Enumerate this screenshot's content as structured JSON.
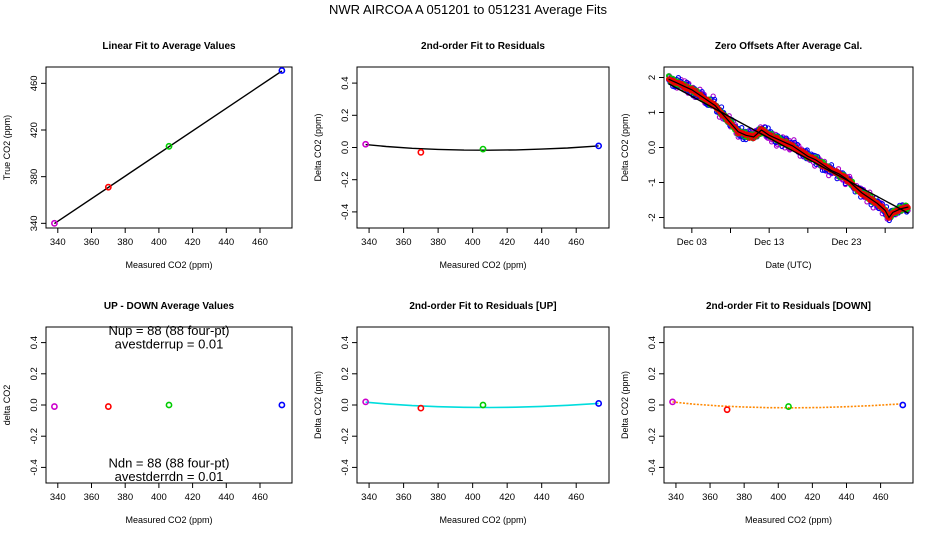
{
  "figure_title": "NWR   AIRCOA A   051201 to 051231   Average Fits",
  "chart_data": [
    {
      "id": "p1",
      "type": "scatter",
      "title": "Linear Fit to Average Values",
      "xlabel": "Measured CO2 (ppm)",
      "ylabel": "True CO2 (ppm)",
      "xlim": [
        333,
        479
      ],
      "ylim": [
        336,
        474
      ],
      "xticks": [
        340,
        360,
        380,
        400,
        420,
        440,
        460
      ],
      "yticks": [
        340,
        380,
        420,
        460
      ],
      "points": [
        {
          "x": 338,
          "y": 340,
          "color": "#cc00cc"
        },
        {
          "x": 370,
          "y": 371,
          "color": "#ff0000"
        },
        {
          "x": 406,
          "y": 406,
          "color": "#00cc00"
        },
        {
          "x": 473,
          "y": 471,
          "color": "#0000ff"
        }
      ],
      "lines": [
        {
          "x": [
            338,
            473
          ],
          "y": [
            339.8,
            470.6
          ],
          "color": "#000000"
        }
      ]
    },
    {
      "id": "p2",
      "type": "scatter",
      "title": "2nd-order Fit to Residuals",
      "xlabel": "Measured CO2 (ppm)",
      "ylabel": "Delta CO2 (ppm)",
      "xlim": [
        333,
        479
      ],
      "ylim": [
        -0.5,
        0.5
      ],
      "xticks": [
        340,
        360,
        380,
        400,
        420,
        440,
        460
      ],
      "yticks": [
        -0.4,
        -0.2,
        0.0,
        0.2,
        0.4
      ],
      "points": [
        {
          "x": 338,
          "y": 0.02,
          "color": "#cc00cc"
        },
        {
          "x": 370,
          "y": -0.03,
          "color": "#ff0000"
        },
        {
          "x": 406,
          "y": -0.01,
          "color": "#00cc00"
        },
        {
          "x": 473,
          "y": 0.01,
          "color": "#0000ff"
        }
      ],
      "lines": [
        {
          "x": [
            338,
            350,
            365,
            380,
            395,
            410,
            425,
            440,
            455,
            473
          ],
          "y": [
            0.018,
            0.006,
            -0.005,
            -0.012,
            -0.016,
            -0.017,
            -0.015,
            -0.01,
            -0.003,
            0.01
          ],
          "color": "#000000"
        }
      ]
    },
    {
      "id": "p3",
      "type": "scatter",
      "title": "Zero Offsets After Average Cal.",
      "xlabel": "Date (UTC)",
      "ylabel": "Delta CO2 (ppm)",
      "xlim": [
        -0.6,
        31.6
      ],
      "ylim": [
        -2.3,
        2.3
      ],
      "xticks": [
        3,
        13,
        23
      ],
      "xticklabels": [
        "Dec 03",
        "Dec 13",
        "Dec 23"
      ],
      "xticks_minor": [
        8,
        18,
        28
      ],
      "yticks": [
        -2,
        -1,
        0,
        1,
        2
      ],
      "bands": [
        {
          "name": "purple",
          "color": "#aa00cc",
          "hw": 0.22,
          "nbase": 0.18
        },
        {
          "name": "blue",
          "color": "#0000ee",
          "hw": 0.22,
          "nbase": 0.14
        },
        {
          "name": "green",
          "color": "#00cc00",
          "hw": 0.1,
          "nbase": 0.1
        },
        {
          "name": "red",
          "color": "#ee0000",
          "hw": 0.05,
          "nbase": 0.07
        }
      ],
      "trend": {
        "x": [
          0,
          1,
          2,
          3,
          4,
          5,
          6,
          7,
          8,
          9,
          10,
          11,
          12,
          13,
          14,
          15,
          16,
          17,
          18,
          19,
          20,
          21,
          22,
          23,
          24,
          25,
          26,
          27,
          28,
          28.5,
          29,
          30,
          31
        ],
        "y": [
          1.95,
          1.85,
          1.75,
          1.65,
          1.5,
          1.35,
          1.2,
          0.95,
          0.7,
          0.45,
          0.35,
          0.3,
          0.5,
          0.35,
          0.25,
          0.15,
          0.05,
          -0.1,
          -0.25,
          -0.35,
          -0.5,
          -0.65,
          -0.75,
          -0.9,
          -1.1,
          -1.3,
          -1.45,
          -1.6,
          -1.8,
          -2.0,
          -1.85,
          -1.75,
          -1.7
        ]
      },
      "lines": [
        {
          "x": [
            0,
            31
          ],
          "y": [
            1.82,
            -1.88
          ],
          "color": "#000000"
        }
      ]
    },
    {
      "id": "p4",
      "type": "scatter",
      "title": "UP - DOWN Average Values",
      "xlabel": "Measured CO2 (ppm)",
      "ylabel": "delta CO2",
      "xlim": [
        333,
        479
      ],
      "ylim": [
        -0.5,
        0.5
      ],
      "xticks": [
        340,
        360,
        380,
        400,
        420,
        440,
        460
      ],
      "yticks": [
        -0.4,
        -0.2,
        0.0,
        0.2,
        0.4
      ],
      "points": [
        {
          "x": 338,
          "y": -0.01,
          "color": "#cc00cc"
        },
        {
          "x": 370,
          "y": -0.01,
          "color": "#ff0000"
        },
        {
          "x": 406,
          "y": 0.0,
          "color": "#00cc00"
        },
        {
          "x": 473,
          "y": 0.0,
          "color": "#0000ff"
        }
      ],
      "annotations": [
        {
          "text": "Nup = 88 (88 four-pt)",
          "x": 406,
          "y": 0.47
        },
        {
          "text": "avestderrup =  0.01",
          "x": 406,
          "y": 0.385
        },
        {
          "text": "Ndn = 88 (88 four-pt)",
          "x": 406,
          "y": -0.38
        },
        {
          "text": "avestderrdn =  0.01",
          "x": 406,
          "y": -0.465
        }
      ]
    },
    {
      "id": "p5",
      "type": "scatter",
      "title": "2nd-order Fit to Residuals [UP]",
      "xlabel": "Measured CO2 (ppm)",
      "ylabel": "Delta CO2 (ppm)",
      "xlim": [
        333,
        479
      ],
      "ylim": [
        -0.5,
        0.5
      ],
      "xticks": [
        340,
        360,
        380,
        400,
        420,
        440,
        460
      ],
      "yticks": [
        -0.4,
        -0.2,
        0.0,
        0.2,
        0.4
      ],
      "points": [
        {
          "x": 338,
          "y": 0.02,
          "color": "#cc00cc"
        },
        {
          "x": 370,
          "y": -0.02,
          "color": "#ff0000"
        },
        {
          "x": 406,
          "y": 0.0,
          "color": "#00cc00"
        },
        {
          "x": 473,
          "y": 0.01,
          "color": "#0000ff"
        }
      ],
      "lines": [
        {
          "x": [
            338,
            350,
            365,
            380,
            395,
            410,
            425,
            440,
            455,
            473
          ],
          "y": [
            0.018,
            0.007,
            -0.004,
            -0.011,
            -0.015,
            -0.016,
            -0.014,
            -0.009,
            -0.002,
            0.01
          ],
          "color": "#00dddd"
        }
      ]
    },
    {
      "id": "p6",
      "type": "scatter",
      "title": "2nd-order Fit to Residuals [DOWN]",
      "xlabel": "Measured CO2 (ppm)",
      "ylabel": "Delta CO2 (ppm)",
      "xlim": [
        333,
        479
      ],
      "ylim": [
        -0.5,
        0.5
      ],
      "xticks": [
        340,
        360,
        380,
        400,
        420,
        440,
        460
      ],
      "yticks": [
        -0.4,
        -0.2,
        0.0,
        0.2,
        0.4
      ],
      "points": [
        {
          "x": 338,
          "y": 0.02,
          "color": "#cc00cc"
        },
        {
          "x": 370,
          "y": -0.03,
          "color": "#ff0000"
        },
        {
          "x": 406,
          "y": -0.01,
          "color": "#00cc00"
        },
        {
          "x": 473,
          "y": 0.0,
          "color": "#0000ff"
        }
      ],
      "lines": [
        {
          "x": [
            338,
            350,
            365,
            380,
            395,
            410,
            425,
            440,
            455,
            473
          ],
          "y": [
            0.02,
            0.006,
            -0.006,
            -0.013,
            -0.017,
            -0.018,
            -0.016,
            -0.011,
            -0.004,
            0.008
          ],
          "color": "#ff8800",
          "dashed": true
        }
      ]
    }
  ]
}
